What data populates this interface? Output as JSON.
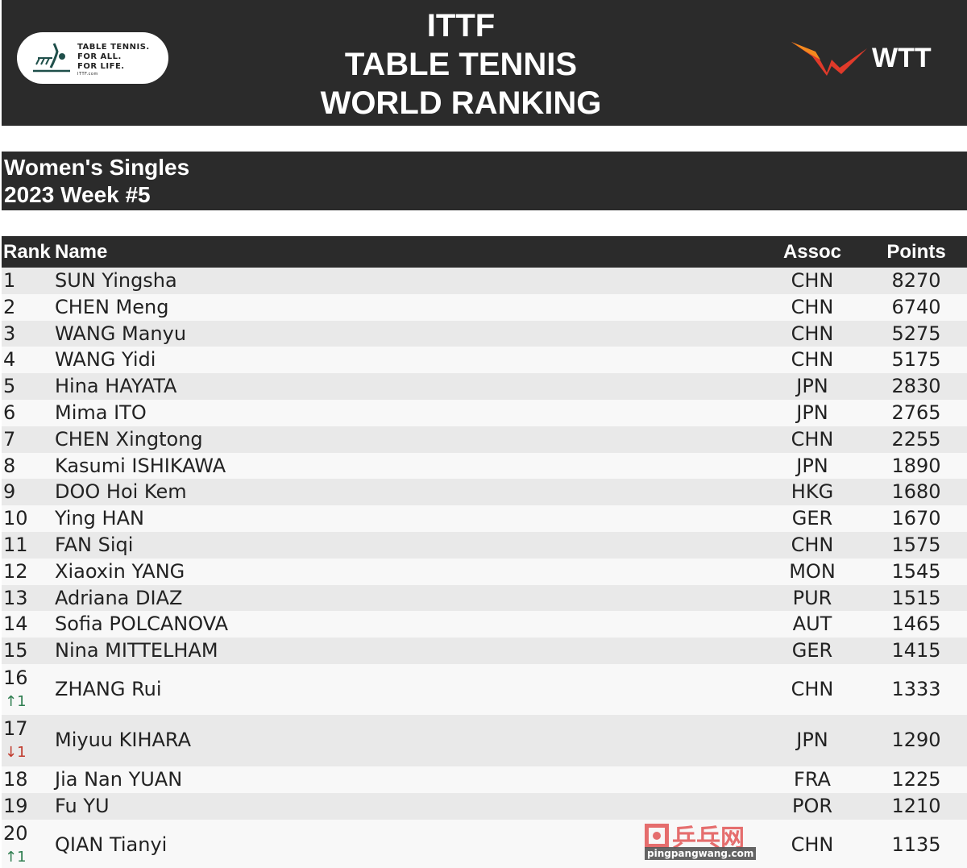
{
  "header": {
    "title_lines": [
      "ITTF",
      "TABLE TENNIS",
      "WORLD RANKING"
    ],
    "ittf_logo": {
      "lines": [
        "TABLE TENNIS.",
        "FOR ALL.",
        "FOR LIFE."
      ],
      "small": "ITTF.com"
    },
    "wtt_logo": "WTT"
  },
  "subtitle": {
    "category": "Women's Singles",
    "week": "2023 Week #5"
  },
  "table": {
    "columns": {
      "rank": "Rank",
      "name": "Name",
      "assoc": "Assoc",
      "points": "Points"
    },
    "rows": [
      {
        "rank": "1",
        "name": "SUN Yingsha",
        "assoc": "CHN",
        "points": "8270"
      },
      {
        "rank": "2",
        "name": "CHEN Meng",
        "assoc": "CHN",
        "points": "6740"
      },
      {
        "rank": "3",
        "name": "WANG Manyu",
        "assoc": "CHN",
        "points": "5275"
      },
      {
        "rank": "4",
        "name": "WANG Yidi",
        "assoc": "CHN",
        "points": "5175"
      },
      {
        "rank": "5",
        "name": "Hina HAYATA",
        "assoc": "JPN",
        "points": "2830"
      },
      {
        "rank": "6",
        "name": "Mima ITO",
        "assoc": "JPN",
        "points": "2765"
      },
      {
        "rank": "7",
        "name": "CHEN Xingtong",
        "assoc": "CHN",
        "points": "2255"
      },
      {
        "rank": "8",
        "name": "Kasumi ISHIKAWA",
        "assoc": "JPN",
        "points": "1890"
      },
      {
        "rank": "9",
        "name": "DOO Hoi Kem",
        "assoc": "HKG",
        "points": "1680"
      },
      {
        "rank": "10",
        "name": "Ying HAN",
        "assoc": "GER",
        "points": "1670"
      },
      {
        "rank": "11",
        "name": "FAN Siqi",
        "assoc": "CHN",
        "points": "1575"
      },
      {
        "rank": "12",
        "name": "Xiaoxin YANG",
        "assoc": "MON",
        "points": "1545"
      },
      {
        "rank": "13",
        "name": "Adriana DIAZ",
        "assoc": "PUR",
        "points": "1515"
      },
      {
        "rank": "14",
        "name": "Sofia POLCANOVA",
        "assoc": "AUT",
        "points": "1465"
      },
      {
        "rank": "15",
        "name": "Nina MITTELHAM",
        "assoc": "GER",
        "points": "1415"
      },
      {
        "rank": "16",
        "name": "ZHANG Rui",
        "assoc": "CHN",
        "points": "1333",
        "move": "↑1",
        "dir": "up"
      },
      {
        "rank": "17",
        "name": "Miyuu KIHARA",
        "assoc": "JPN",
        "points": "1290",
        "move": "↓1",
        "dir": "down"
      },
      {
        "rank": "18",
        "name": "Jia Nan YUAN",
        "assoc": "FRA",
        "points": "1225"
      },
      {
        "rank": "19",
        "name": "Fu YU",
        "assoc": "POR",
        "points": "1210"
      },
      {
        "rank": "20",
        "name": "QIAN Tianyi",
        "assoc": "CHN",
        "points": "1135",
        "move": "↑1",
        "dir": "up"
      }
    ]
  },
  "watermark": {
    "cn": "乒乓网",
    "url": "pingpangwang.com"
  },
  "colors": {
    "dark": "#2b2b2b",
    "up": "#2e7d4f",
    "down": "#c0392b",
    "wtt_red": "#e03a2a",
    "wtt_orange": "#f28a1e"
  }
}
